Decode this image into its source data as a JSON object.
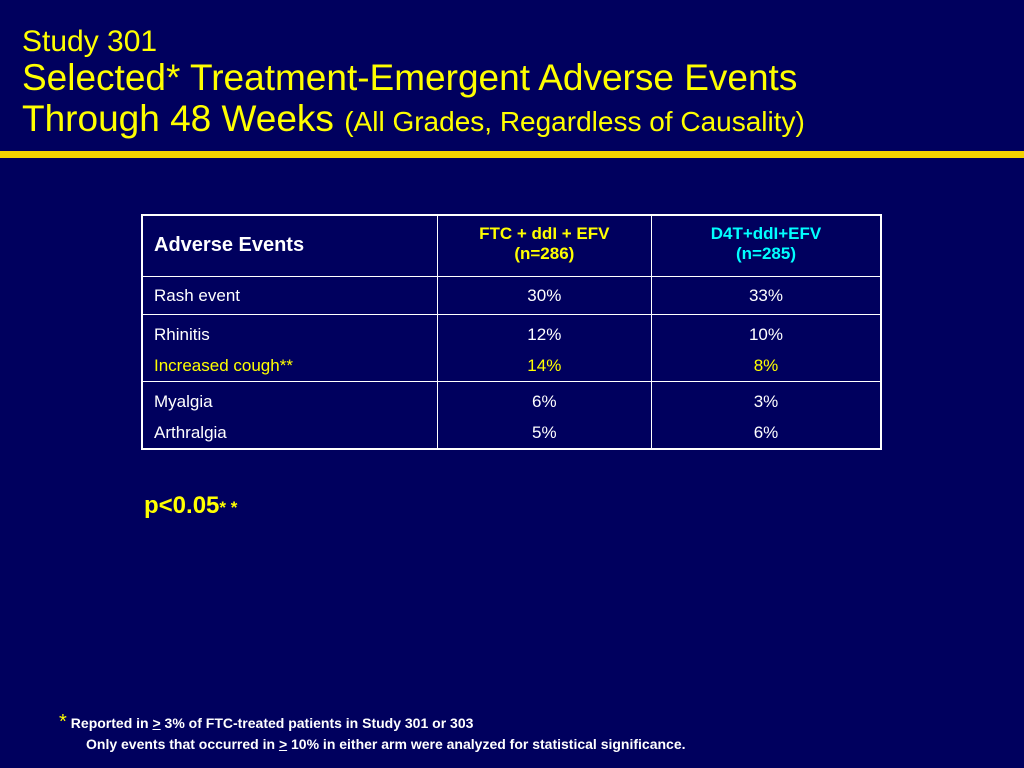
{
  "title": {
    "line1": "Study 301",
    "line2": "Selected* Treatment-Emergent Adverse Events",
    "line3_main": "Through 48 Weeks",
    "line3_sub": "(All Grades, Regardless of Causality)"
  },
  "table": {
    "header": {
      "col1": "Adverse Events",
      "arm1_name": "FTC + ddI + EFV",
      "arm1_n": "(n=286)",
      "arm2_name": "D4T+ddI+EFV",
      "arm2_n": "(n=285)"
    },
    "rows": [
      {
        "events": [
          "Rash event"
        ],
        "arm1": [
          "30%"
        ],
        "arm2": [
          "33%"
        ]
      },
      {
        "events": [
          "Rhinitis",
          "Increased cough**"
        ],
        "arm1": [
          "12%",
          "14%"
        ],
        "arm2": [
          "10%",
          "8%"
        ]
      },
      {
        "events": [
          "Myalgia",
          "Arthralgia"
        ],
        "arm1": [
          "6%",
          "5%"
        ],
        "arm2": [
          "3%",
          "6%"
        ]
      }
    ]
  },
  "pvalue": {
    "text": "p<0.05",
    "stars": "* *"
  },
  "footnote": {
    "star": "*",
    "line1_pre": "Reported in ",
    "line1_ge": ">",
    "line1_post": " 3% of FTC-treated patients in Study 301 or 303",
    "line2_pre": "Only events that occurred in ",
    "line2_ge": ">",
    "line2_post": " 10% in either arm were analyzed for statistical significance."
  },
  "colors": {
    "background": "#00005e",
    "title": "#ffff00",
    "rule": "#f2d200",
    "arm1_header": "#ffff00",
    "arm2_header": "#00ffff",
    "highlight_row": "#ffff00",
    "table_text": "#ffffff"
  }
}
